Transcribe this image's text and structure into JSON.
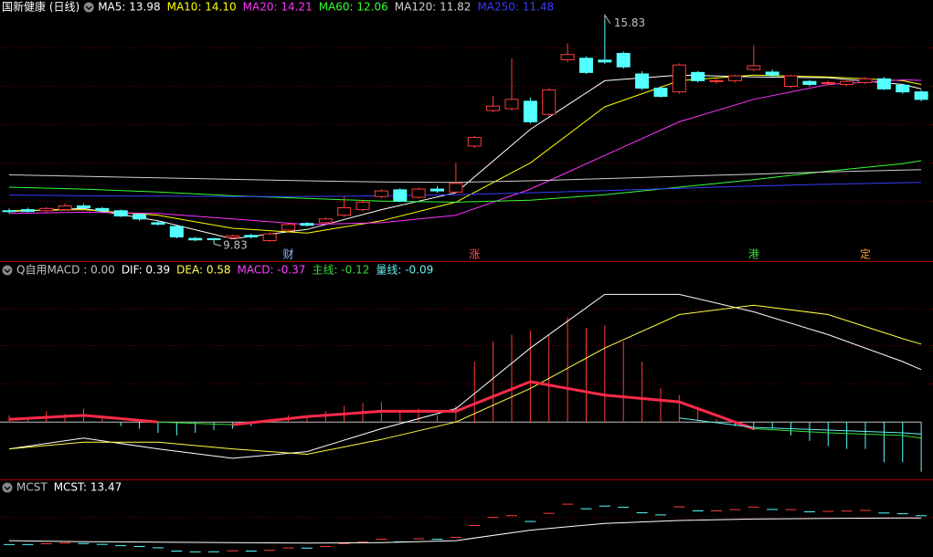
{
  "chart_data": [
    {
      "type": "candlestick",
      "title": "国新健康 (日线)",
      "up_color": "#ff3c3c",
      "down_color": "#54ffff",
      "ylim": [
        9.42,
        16.31
      ],
      "open": [
        10.72,
        10.75,
        10.72,
        10.75,
        10.85,
        10.78,
        10.72,
        10.62,
        10.4,
        10.3,
        9.98,
        9.97,
        10.0,
        10.06,
        9.92,
        10.2,
        10.38,
        10.4,
        10.6,
        10.75,
        11.1,
        11.28,
        11.08,
        11.3,
        11.22,
        12.45,
        13.4,
        13.45,
        13.65,
        13.3,
        14.76,
        14.8,
        14.75,
        14.93,
        14.38,
        14.0,
        13.9,
        14.42,
        14.18,
        14.2,
        14.5,
        14.43,
        14.05,
        14.18,
        14.14,
        14.1,
        14.15,
        14.25,
        14.08,
        13.9
      ],
      "high": [
        10.78,
        10.8,
        10.82,
        10.92,
        10.9,
        10.82,
        10.75,
        10.65,
        10.45,
        10.33,
        10.02,
        10.0,
        10.08,
        10.1,
        10.14,
        10.38,
        10.42,
        10.55,
        11.1,
        11.0,
        11.3,
        11.32,
        11.34,
        11.38,
        12.0,
        12.72,
        13.8,
        14.8,
        13.75,
        14.0,
        15.2,
        14.85,
        15.83,
        14.98,
        14.45,
        14.05,
        14.66,
        14.46,
        14.25,
        14.36,
        15.15,
        14.5,
        14.36,
        14.22,
        14.2,
        14.2,
        14.3,
        14.3,
        14.12,
        13.95
      ],
      "low": [
        10.65,
        10.68,
        10.68,
        10.72,
        10.78,
        10.68,
        10.55,
        10.45,
        10.32,
        9.98,
        9.9,
        9.83,
        9.96,
        9.98,
        9.88,
        10.16,
        10.3,
        10.36,
        10.55,
        10.7,
        11.05,
        10.95,
        11.04,
        11.2,
        11.18,
        12.4,
        13.35,
        13.4,
        13.05,
        13.25,
        14.7,
        14.38,
        14.65,
        14.52,
        13.95,
        13.75,
        13.85,
        14.15,
        14.12,
        14.15,
        14.45,
        14.3,
        14.0,
        14.05,
        14.08,
        14.05,
        14.1,
        13.95,
        13.85,
        13.65
      ],
      "close": [
        10.7,
        10.7,
        10.78,
        10.85,
        10.8,
        10.72,
        10.58,
        10.5,
        10.36,
        10.02,
        9.94,
        9.95,
        10.05,
        10.02,
        10.1,
        10.35,
        10.33,
        10.5,
        10.8,
        10.95,
        11.25,
        10.98,
        11.3,
        11.25,
        11.45,
        12.68,
        13.52,
        13.7,
        13.1,
        13.95,
        14.9,
        14.42,
        14.7,
        14.57,
        14.0,
        13.78,
        14.62,
        14.2,
        14.2,
        14.33,
        14.6,
        14.35,
        14.33,
        14.1,
        14.15,
        14.18,
        14.25,
        13.98,
        13.9,
        13.7
      ],
      "lines": [
        {
          "name": "MA5",
          "label": "MA5: 13.98",
          "color": "#ffffff",
          "x": [
            0,
            4,
            8,
            12,
            16,
            20,
            24,
            28,
            32,
            36,
            40,
            44,
            48,
            49
          ],
          "values": [
            10.7,
            10.78,
            10.45,
            9.97,
            10.22,
            10.75,
            11.2,
            12.9,
            14.2,
            14.35,
            14.3,
            14.28,
            14.1,
            13.98
          ]
        },
        {
          "name": "MA10",
          "label": "MA10: 14.10",
          "color": "#ffff00",
          "x": [
            0,
            4,
            8,
            12,
            16,
            20,
            24,
            28,
            32,
            36,
            40,
            44,
            48,
            49
          ],
          "values": [
            10.72,
            10.75,
            10.6,
            10.25,
            10.12,
            10.45,
            10.95,
            12.0,
            13.5,
            14.2,
            14.35,
            14.3,
            14.2,
            14.1
          ]
        },
        {
          "name": "MA20",
          "label": "MA20: 14.21",
          "color": "#ff33ff",
          "x": [
            0,
            4,
            8,
            12,
            16,
            20,
            24,
            28,
            32,
            36,
            40,
            44,
            48,
            49
          ],
          "values": [
            10.65,
            10.68,
            10.65,
            10.5,
            10.35,
            10.4,
            10.6,
            11.3,
            12.2,
            13.1,
            13.7,
            14.1,
            14.22,
            14.21
          ]
        },
        {
          "name": "MA60",
          "label": "MA60: 12.06",
          "color": "#33ff33",
          "x": [
            0,
            4,
            8,
            12,
            16,
            20,
            24,
            28,
            32,
            36,
            40,
            44,
            48,
            49
          ],
          "values": [
            11.35,
            11.3,
            11.22,
            11.12,
            11.05,
            10.98,
            10.95,
            11.0,
            11.15,
            11.35,
            11.55,
            11.78,
            11.98,
            12.06
          ]
        },
        {
          "name": "MA120",
          "label": "MA120: 11.82",
          "color": "#d0d0d0",
          "x": [
            0,
            4,
            8,
            12,
            16,
            20,
            24,
            28,
            32,
            36,
            40,
            44,
            48,
            49
          ],
          "values": [
            11.68,
            11.64,
            11.6,
            11.56,
            11.52,
            11.49,
            11.48,
            11.52,
            11.58,
            11.64,
            11.7,
            11.76,
            11.81,
            11.82
          ]
        },
        {
          "name": "MA250",
          "label": "MA250: 11.48",
          "color": "#3a3aff",
          "x": [
            0,
            4,
            8,
            12,
            16,
            20,
            24,
            28,
            32,
            36,
            40,
            44,
            48,
            49
          ],
          "values": [
            11.14,
            11.12,
            11.11,
            11.1,
            11.1,
            11.12,
            11.15,
            11.2,
            11.26,
            11.32,
            11.38,
            11.43,
            11.47,
            11.48
          ]
        }
      ],
      "annotations": [
        {
          "x": 32,
          "value": 15.83
        },
        {
          "x": 11,
          "value": 9.83
        }
      ],
      "markers": [
        {
          "x": 15,
          "text": "财",
          "color": "#8fb8ff"
        },
        {
          "x": 25,
          "text": "涨",
          "color": "#ff5050"
        },
        {
          "x": 40,
          "text": "港",
          "color": "#33dd33"
        },
        {
          "x": 46,
          "text": "定",
          "color": "#ff9933"
        }
      ]
    },
    {
      "type": "macd",
      "title": "Q自用MACD : 0.00",
      "ylim": [
        -0.42,
        1.17
      ],
      "bars_label": "MACD: -0.37",
      "bar_up_color": "#ff3c3c",
      "bar_down_color": "#54ffff",
      "zero_color": "#c0c0c0",
      "bars": [
        0.05,
        0.03,
        0.08,
        0.06,
        0.1,
        0.04,
        -0.03,
        -0.05,
        -0.08,
        -0.1,
        -0.08,
        -0.06,
        -0.05,
        -0.03,
        0.02,
        0.05,
        0.04,
        0.08,
        0.12,
        0.14,
        0.15,
        0.08,
        0.1,
        0.05,
        0.12,
        0.45,
        0.6,
        0.65,
        0.68,
        0.65,
        0.78,
        0.7,
        0.72,
        0.6,
        0.45,
        0.25,
        0.2,
        0.1,
        0.02,
        -0.03,
        -0.06,
        -0.05,
        -0.1,
        -0.14,
        -0.18,
        -0.2,
        -0.2,
        -0.3,
        -0.3,
        -0.37
      ],
      "series": [
        {
          "name": "DIF",
          "label": "DIF: 0.39",
          "color": "#ffffff",
          "x": [
            0,
            4,
            8,
            12,
            16,
            20,
            24,
            28,
            32,
            36,
            40,
            44,
            48,
            49
          ],
          "values": [
            -0.2,
            -0.12,
            -0.2,
            -0.27,
            -0.22,
            -0.05,
            0.1,
            0.55,
            0.95,
            0.95,
            0.82,
            0.65,
            0.45,
            0.39
          ]
        },
        {
          "name": "DEA",
          "label": "DEA: 0.58",
          "color": "#ffff44",
          "x": [
            0,
            4,
            8,
            12,
            16,
            20,
            24,
            28,
            32,
            36,
            40,
            44,
            48,
            49
          ],
          "values": [
            -0.2,
            -0.15,
            -0.15,
            -0.2,
            -0.24,
            -0.13,
            0.0,
            0.25,
            0.55,
            0.8,
            0.87,
            0.8,
            0.62,
            0.58
          ]
        },
        {
          "name": "主线",
          "label": "主线: -0.12",
          "color": "#33dd33",
          "positive_color": "#ff2a4a",
          "x": [
            0,
            4,
            8,
            12,
            16,
            20,
            24,
            28,
            32,
            36,
            40,
            44,
            48,
            49
          ],
          "values": [
            0.02,
            0.05,
            0.0,
            -0.02,
            0.04,
            0.08,
            0.08,
            0.3,
            0.2,
            0.15,
            -0.05,
            -0.08,
            -0.1,
            -0.12
          ]
        },
        {
          "name": "量线",
          "label": "量线: -0.09",
          "color": "#66eeee",
          "x": [
            36,
            40,
            44,
            48,
            49
          ],
          "values": [
            0.03,
            -0.04,
            -0.06,
            -0.08,
            -0.09
          ]
        }
      ]
    },
    {
      "type": "mcst",
      "title": "MCST",
      "ylim": [
        9.5,
        17.0
      ],
      "series": [
        {
          "name": "MCST",
          "label": "MCST: 13.47",
          "color": "#ffffff",
          "x": [
            0,
            4,
            8,
            12,
            16,
            20,
            24,
            28,
            32,
            36,
            40,
            44,
            48,
            49
          ],
          "values": [
            11.1,
            11.0,
            10.95,
            10.9,
            10.85,
            10.9,
            11.1,
            12.2,
            12.9,
            13.2,
            13.35,
            13.42,
            13.46,
            13.47
          ]
        }
      ]
    }
  ]
}
